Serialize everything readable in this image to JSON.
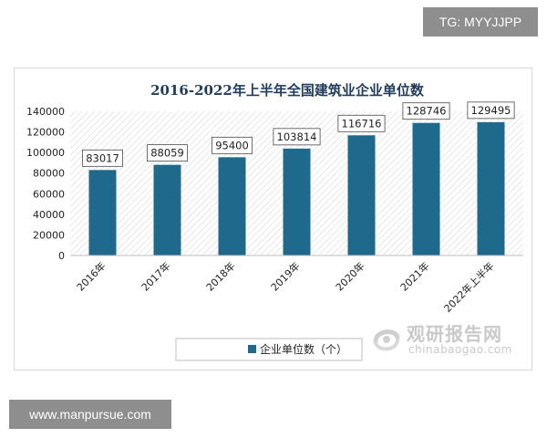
{
  "watermark_top": "TG: MYYJJPP",
  "watermark_bottom": "www.manpursue.com",
  "brand": {
    "name_cn": "观研报告网",
    "name_en": "chinabaogao.com",
    "icon": "swirl-logo-icon"
  },
  "colors": {
    "bar": "#1f6a8c",
    "title": "#1f3b5c",
    "hatch": "#dcdcdc",
    "axis_text": "#222222"
  },
  "chart_data": {
    "type": "bar",
    "title": "2016-2022年上半年全国建筑业企业单位数",
    "categories": [
      "2016年",
      "2017年",
      "2018年",
      "2019年",
      "2020年",
      "2021年",
      "2022年上半年"
    ],
    "series": [
      {
        "name": "企业单位数（个）",
        "values": [
          83017,
          88059,
          95400,
          103814,
          116716,
          128746,
          129495
        ]
      }
    ],
    "data_labels": [
      "83017",
      "88059",
      "95400",
      "103814",
      "116716",
      "128746",
      "129495"
    ],
    "y_ticks": [
      "0",
      "20000",
      "40000",
      "60000",
      "80000",
      "100000",
      "120000",
      "140000"
    ],
    "ylim": [
      0,
      140000
    ],
    "legend_position": "bottom",
    "grid": false
  }
}
